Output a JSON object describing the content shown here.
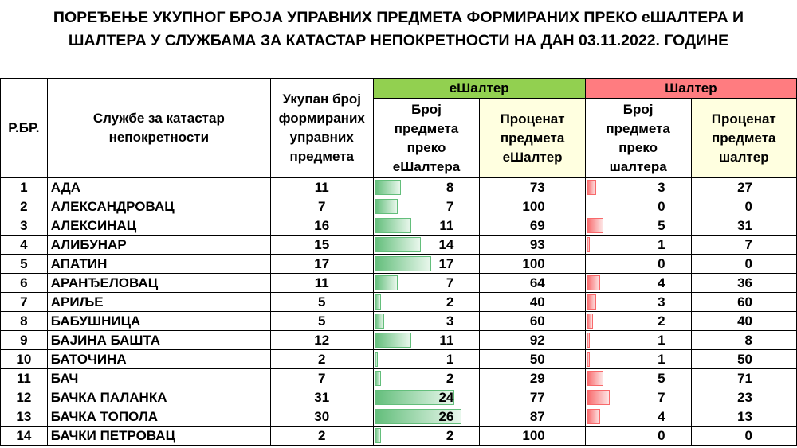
{
  "title_line1": "ПОРЕЂЕЊЕ УКУПНОГ БРОЈА УПРАВНИХ ПРЕДМЕТА ФОРМИРАНИХ ПРЕКО еШАЛТЕРА И",
  "title_line2": "ШАЛТЕРА У СЛУЖБАМА ЗА КАТАСТАР НЕПОКРЕТНОСТИ НА ДАН 03.11.2022. ГОДИНЕ",
  "headers": {
    "rbr": "Р.БР.",
    "service": "Службе за катастар непокретности",
    "total": "Укупан број формираних управних предмета",
    "eshalter_group": "еШалтер",
    "eshalter_count": "Број предмета преко еШалтера",
    "eshalter_pct": "Проценат предмета еШалтер",
    "shalter_group": "Шалтер",
    "shalter_count": "Број предмета преко шалтера",
    "shalter_pct": "Проценат предмета шалтер"
  },
  "colors": {
    "eshalter": "#92d050",
    "shalter": "#ff7c80",
    "pct_header": "#ffffe0",
    "bar_green": "#63be7b",
    "bar_red": "#f8696b"
  },
  "bar_scale_max": 31,
  "rows": [
    {
      "rbr": "1",
      "name": "АДА",
      "total": "11",
      "e_count": "8",
      "e_pct": "73",
      "s_count": "3",
      "s_pct": "27"
    },
    {
      "rbr": "2",
      "name": "АЛЕКСАНДРОВАЦ",
      "total": "7",
      "e_count": "7",
      "e_pct": "100",
      "s_count": "0",
      "s_pct": "0"
    },
    {
      "rbr": "3",
      "name": "АЛЕКСИНАЦ",
      "total": "16",
      "e_count": "11",
      "e_pct": "69",
      "s_count": "5",
      "s_pct": "31"
    },
    {
      "rbr": "4",
      "name": "АЛИБУНАР",
      "total": "15",
      "e_count": "14",
      "e_pct": "93",
      "s_count": "1",
      "s_pct": "7"
    },
    {
      "rbr": "5",
      "name": "АПАТИН",
      "total": "17",
      "e_count": "17",
      "e_pct": "100",
      "s_count": "0",
      "s_pct": "0"
    },
    {
      "rbr": "6",
      "name": "АРАНЂЕЛОВАЦ",
      "total": "11",
      "e_count": "7",
      "e_pct": "64",
      "s_count": "4",
      "s_pct": "36"
    },
    {
      "rbr": "7",
      "name": "АРИЉЕ",
      "total": "5",
      "e_count": "2",
      "e_pct": "40",
      "s_count": "3",
      "s_pct": "60"
    },
    {
      "rbr": "8",
      "name": "БАБУШНИЦА",
      "total": "5",
      "e_count": "3",
      "e_pct": "60",
      "s_count": "2",
      "s_pct": "40"
    },
    {
      "rbr": "9",
      "name": "БАЈИНА БАШТА",
      "total": "12",
      "e_count": "11",
      "e_pct": "92",
      "s_count": "1",
      "s_pct": "8"
    },
    {
      "rbr": "10",
      "name": "БАТОЧИНА",
      "total": "2",
      "e_count": "1",
      "e_pct": "50",
      "s_count": "1",
      "s_pct": "50"
    },
    {
      "rbr": "11",
      "name": "БАЧ",
      "total": "7",
      "e_count": "2",
      "e_pct": "29",
      "s_count": "5",
      "s_pct": "71"
    },
    {
      "rbr": "12",
      "name": "БАЧКА ПАЛАНКА",
      "total": "31",
      "e_count": "24",
      "e_pct": "77",
      "s_count": "7",
      "s_pct": "23"
    },
    {
      "rbr": "13",
      "name": "БАЧКА ТОПОЛА",
      "total": "30",
      "e_count": "26",
      "e_pct": "87",
      "s_count": "4",
      "s_pct": "13"
    },
    {
      "rbr": "14",
      "name": "БАЧКИ ПЕТРОВАЦ",
      "total": "2",
      "e_count": "2",
      "e_pct": "100",
      "s_count": "0",
      "s_pct": "0"
    }
  ]
}
